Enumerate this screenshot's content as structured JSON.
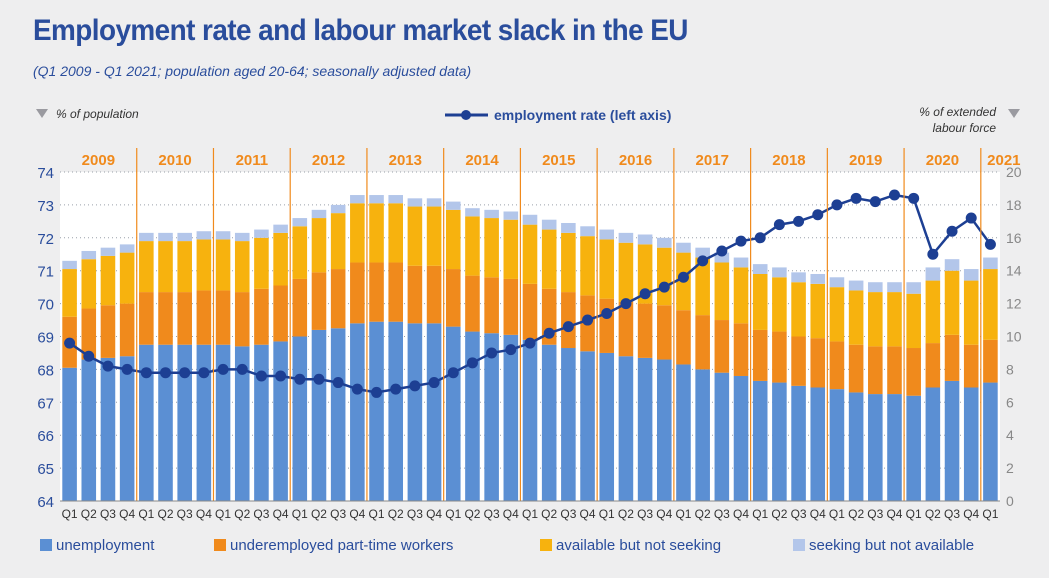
{
  "title": "Employment rate and labour market slack in the EU",
  "subtitle": "(Q1 2009 - Q1 2021; population aged 20-64; seasonally adjusted data)",
  "left_axis_label": "% of population",
  "right_axis_label_line1": "% of extended",
  "right_axis_label_line2": "labour force",
  "line_legend": "employment rate (left axis)",
  "colors": {
    "unemployment": "#5b8fd3",
    "underemployed": "#f08a1c",
    "available": "#f7b20e",
    "seeking": "#b3c6ea",
    "line": "#1d3f93",
    "year_sep": "#f08a1c",
    "axis_text": "#2a4d9c"
  },
  "chart_data": {
    "type": "bar",
    "stacked": true,
    "years": [
      "2009",
      "2010",
      "2011",
      "2012",
      "2013",
      "2014",
      "2015",
      "2016",
      "2017",
      "2018",
      "2019",
      "2020",
      "2021"
    ],
    "categories": [
      "Q1",
      "Q2",
      "Q3",
      "Q4",
      "Q1",
      "Q2",
      "Q3",
      "Q4",
      "Q1",
      "Q2",
      "Q3",
      "Q4",
      "Q1",
      "Q2",
      "Q3",
      "Q4",
      "Q1",
      "Q2",
      "Q3",
      "Q4",
      "Q1",
      "Q2",
      "Q3",
      "Q4",
      "Q1",
      "Q2",
      "Q3",
      "Q4",
      "Q1",
      "Q2",
      "Q3",
      "Q4",
      "Q1",
      "Q2",
      "Q3",
      "Q4",
      "Q1",
      "Q2",
      "Q3",
      "Q4",
      "Q1",
      "Q2",
      "Q3",
      "Q4",
      "Q1",
      "Q2",
      "Q3",
      "Q4",
      "Q1"
    ],
    "left_ylim": [
      64,
      74
    ],
    "left_ticks": [
      64,
      65,
      66,
      67,
      68,
      69,
      70,
      71,
      72,
      73,
      74
    ],
    "right_ylim": [
      0,
      20
    ],
    "right_ticks": [
      0,
      2,
      4,
      6,
      8,
      10,
      12,
      14,
      16,
      18,
      20
    ],
    "series": [
      {
        "name": "unemployment",
        "axis": "right",
        "values": [
          8.1,
          8.6,
          8.7,
          8.8,
          9.5,
          9.5,
          9.5,
          9.5,
          9.5,
          9.4,
          9.5,
          9.7,
          10.0,
          10.4,
          10.5,
          10.8,
          10.9,
          10.9,
          10.8,
          10.8,
          10.6,
          10.3,
          10.2,
          10.1,
          9.8,
          9.5,
          9.3,
          9.1,
          9.0,
          8.8,
          8.7,
          8.6,
          8.3,
          8.0,
          7.8,
          7.6,
          7.3,
          7.2,
          7.0,
          6.9,
          6.8,
          6.6,
          6.5,
          6.5,
          6.4,
          6.9,
          7.3,
          6.9,
          7.2
        ]
      },
      {
        "name": "underemployed part-time workers",
        "axis": "right",
        "values": [
          3.1,
          3.1,
          3.2,
          3.2,
          3.2,
          3.2,
          3.2,
          3.3,
          3.3,
          3.3,
          3.4,
          3.4,
          3.5,
          3.5,
          3.6,
          3.7,
          3.6,
          3.6,
          3.5,
          3.5,
          3.5,
          3.4,
          3.4,
          3.4,
          3.4,
          3.4,
          3.4,
          3.4,
          3.3,
          3.3,
          3.3,
          3.3,
          3.3,
          3.3,
          3.2,
          3.2,
          3.1,
          3.1,
          3.0,
          3.0,
          2.9,
          2.9,
          2.9,
          2.9,
          2.9,
          2.7,
          2.8,
          2.6,
          2.6
        ]
      },
      {
        "name": "available but not seeking",
        "axis": "right",
        "values": [
          2.9,
          3.0,
          3.0,
          3.1,
          3.1,
          3.1,
          3.1,
          3.1,
          3.1,
          3.1,
          3.1,
          3.2,
          3.2,
          3.3,
          3.4,
          3.6,
          3.6,
          3.6,
          3.6,
          3.6,
          3.6,
          3.6,
          3.6,
          3.6,
          3.6,
          3.6,
          3.6,
          3.6,
          3.6,
          3.6,
          3.6,
          3.5,
          3.5,
          3.5,
          3.5,
          3.4,
          3.4,
          3.3,
          3.3,
          3.3,
          3.3,
          3.3,
          3.3,
          3.3,
          3.3,
          3.8,
          3.9,
          3.9,
          4.3
        ]
      },
      {
        "name": "seeking but not available",
        "axis": "right",
        "values": [
          0.5,
          0.5,
          0.5,
          0.5,
          0.5,
          0.5,
          0.5,
          0.5,
          0.5,
          0.5,
          0.5,
          0.5,
          0.5,
          0.5,
          0.5,
          0.5,
          0.5,
          0.5,
          0.5,
          0.5,
          0.5,
          0.5,
          0.5,
          0.5,
          0.6,
          0.6,
          0.6,
          0.6,
          0.6,
          0.6,
          0.6,
          0.6,
          0.6,
          0.6,
          0.6,
          0.6,
          0.6,
          0.6,
          0.6,
          0.6,
          0.6,
          0.6,
          0.6,
          0.6,
          0.7,
          0.8,
          0.7,
          0.7,
          0.7
        ]
      },
      {
        "name": "employment rate (left axis)",
        "axis": "left",
        "type": "line",
        "values": [
          68.8,
          68.4,
          68.1,
          68.0,
          67.9,
          67.9,
          67.9,
          67.9,
          68.0,
          68.0,
          67.8,
          67.8,
          67.7,
          67.7,
          67.6,
          67.4,
          67.3,
          67.4,
          67.5,
          67.6,
          67.9,
          68.2,
          68.5,
          68.6,
          68.8,
          69.1,
          69.3,
          69.5,
          69.7,
          70.0,
          70.3,
          70.5,
          70.8,
          71.3,
          71.6,
          71.9,
          72.0,
          72.4,
          72.5,
          72.7,
          73.0,
          73.2,
          73.1,
          73.3,
          73.2,
          71.5,
          72.2,
          72.6,
          71.8
        ]
      }
    ]
  },
  "legend": [
    {
      "label": "unemployment",
      "color_key": "unemployment"
    },
    {
      "label": "underemployed part-time workers",
      "color_key": "underemployed"
    },
    {
      "label": "available but not seeking",
      "color_key": "available"
    },
    {
      "label": "seeking but not available",
      "color_key": "seeking"
    }
  ]
}
